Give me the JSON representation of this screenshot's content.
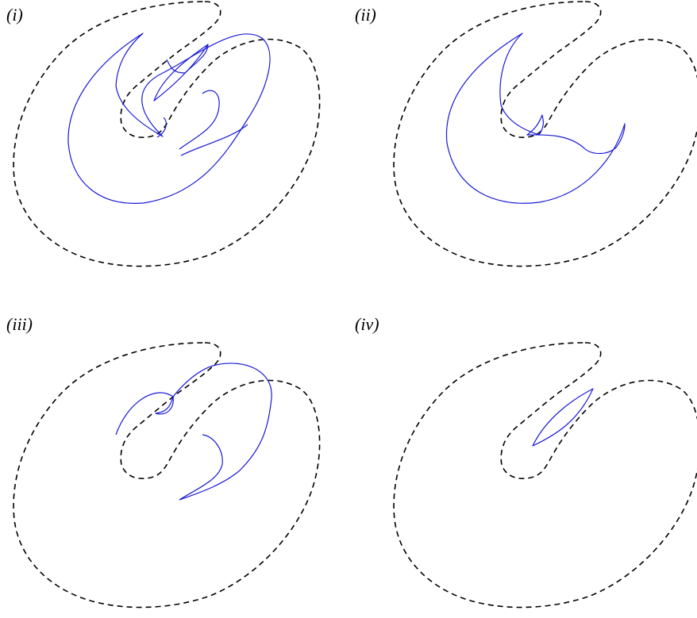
{
  "panels": [
    {
      "label": "(i)"
    },
    {
      "label": "(ii)"
    },
    {
      "label": "(iii)"
    },
    {
      "label": "(iv)"
    }
  ],
  "colors": {
    "outline": "#000000",
    "curve": "#1a1ad6",
    "background": "#ffffff"
  }
}
